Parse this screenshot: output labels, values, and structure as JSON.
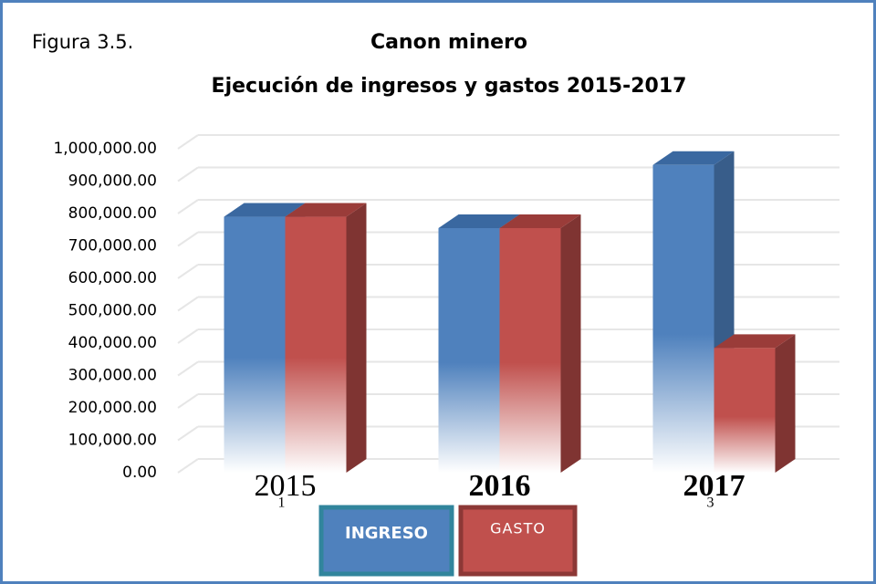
{
  "chart_data": {
    "type": "bar3d",
    "figure_label": "Figura 3.5.",
    "title": "Canon minero",
    "subtitle": "Ejecución de ingresos y gastos 2015-2017",
    "categories": [
      "2015",
      "2016",
      "2017"
    ],
    "category_index_labels": [
      "1",
      null,
      "3"
    ],
    "series": [
      {
        "name": "INGRESO",
        "color": "#4f81bd",
        "values": [
          790000,
          755000,
          950000
        ]
      },
      {
        "name": "GASTO",
        "color": "#c0504d",
        "values": [
          790000,
          755000,
          385000
        ]
      }
    ],
    "ylim": [
      0,
      1000000
    ],
    "yticks": [
      {
        "value": 0,
        "label": "0.00"
      },
      {
        "value": 100000,
        "label": "100,000.00"
      },
      {
        "value": 200000,
        "label": "200,000.00"
      },
      {
        "value": 300000,
        "label": "300,000.00"
      },
      {
        "value": 400000,
        "label": "400,000.00"
      },
      {
        "value": 500000,
        "label": "500,000.00"
      },
      {
        "value": 600000,
        "label": "600,000.00"
      },
      {
        "value": 700000,
        "label": "700,000.00"
      },
      {
        "value": 800000,
        "label": "800,000.00"
      },
      {
        "value": 900000,
        "label": "900,000.00"
      },
      {
        "value": 1000000,
        "label": "1,000,000.00"
      }
    ],
    "grid": true
  }
}
